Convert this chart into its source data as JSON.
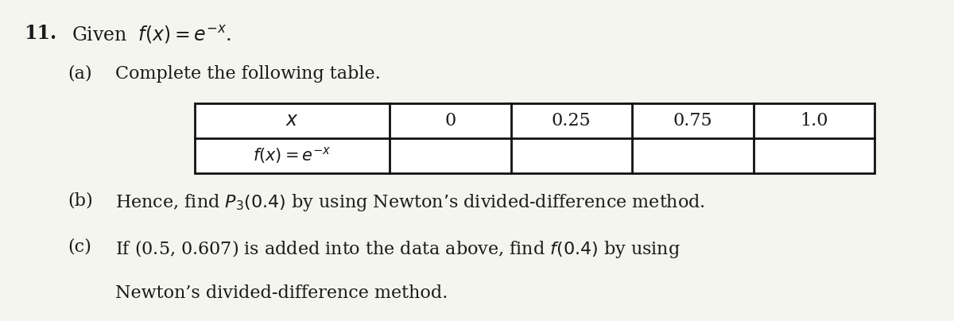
{
  "background_color": "#f5f5f0",
  "question_number": "11.",
  "title_text": "Given  $f(x) = e^{-x}$.",
  "part_a_label": "(a)",
  "part_a_text": "Complete the following table.",
  "table_x_label": "$x$",
  "table_fx_label": "$f(x) = e^{-x}$",
  "table_x_values": [
    "0",
    "0.25",
    "0.75",
    "1.0"
  ],
  "part_b_label": "(b)",
  "part_b_text": "Hence, find $P_3(0.4)$ by using Newton’s divided-difference method.",
  "part_c_label": "(c)",
  "part_c_text_line1": "If (0.5, 0.607) is added into the data above, find $f(0.4)$ by using",
  "part_c_text_line2": "Newton’s divided-difference method.",
  "font_size_main": 16,
  "font_size_table": 15,
  "text_color": "#1a1a1a",
  "line_color": "#111111",
  "fig_width": 12.0,
  "fig_height": 4.04,
  "dpi": 100
}
